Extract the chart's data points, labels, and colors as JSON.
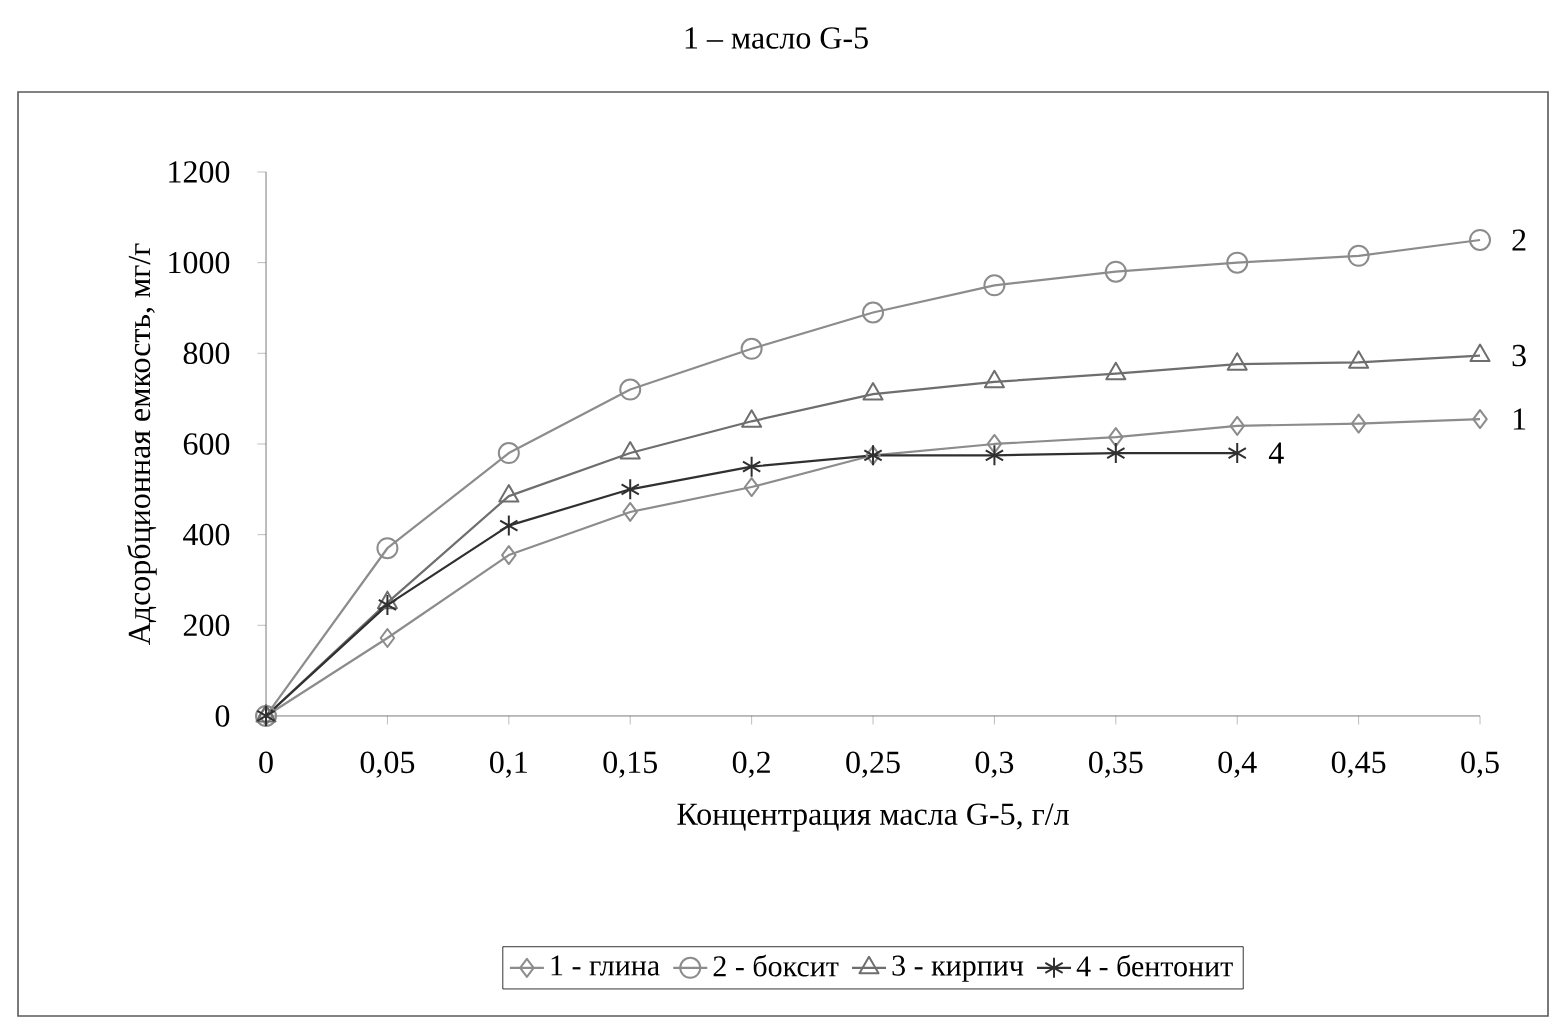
{
  "chart_data": {
    "type": "line",
    "title": "1 – масло G-5",
    "xlabel": "Концентрация масла G-5, г/л",
    "ylabel": "Адсорбционная емкость, мг/г",
    "categories": [
      "0",
      "0,05",
      "0,1",
      "0,15",
      "0,2",
      "0,25",
      "0,3",
      "0,35",
      "0,4",
      "0,45",
      "0,5"
    ],
    "ylim": [
      0,
      1200
    ],
    "yticks": [
      0,
      200,
      400,
      600,
      800,
      1000,
      1200
    ],
    "legend": "bottom",
    "line_style": "solid",
    "series": [
      {
        "name": "1 - глина",
        "color": "#8c8c8c",
        "marker": "diamond",
        "values": [
          0,
          172,
          355,
          450,
          505,
          575,
          600,
          615,
          640,
          645,
          655
        ]
      },
      {
        "name": "2 - боксит",
        "color": "#8c8c8c",
        "marker": "circle",
        "values": [
          0,
          370,
          580,
          720,
          810,
          890,
          950,
          980,
          1000,
          1015,
          1050
        ]
      },
      {
        "name": "3 - кирпич",
        "color": "#6e6e6e",
        "marker": "triangle",
        "values": [
          0,
          250,
          485,
          580,
          650,
          710,
          737,
          755,
          776,
          780,
          795
        ]
      },
      {
        "name": "4 - бентонит",
        "color": "#303030",
        "marker": "cross",
        "values": [
          0,
          245,
          420,
          500,
          550,
          575,
          575,
          580,
          580,
          null,
          null
        ]
      }
    ],
    "annotations": [
      {
        "text": "2",
        "x": "0,5",
        "y": 1050
      },
      {
        "text": "3",
        "x": "0,5",
        "y": 795
      },
      {
        "text": "1",
        "x": "0,5",
        "y": 655
      },
      {
        "text": "4",
        "x": "0,4",
        "y": 580
      }
    ]
  }
}
